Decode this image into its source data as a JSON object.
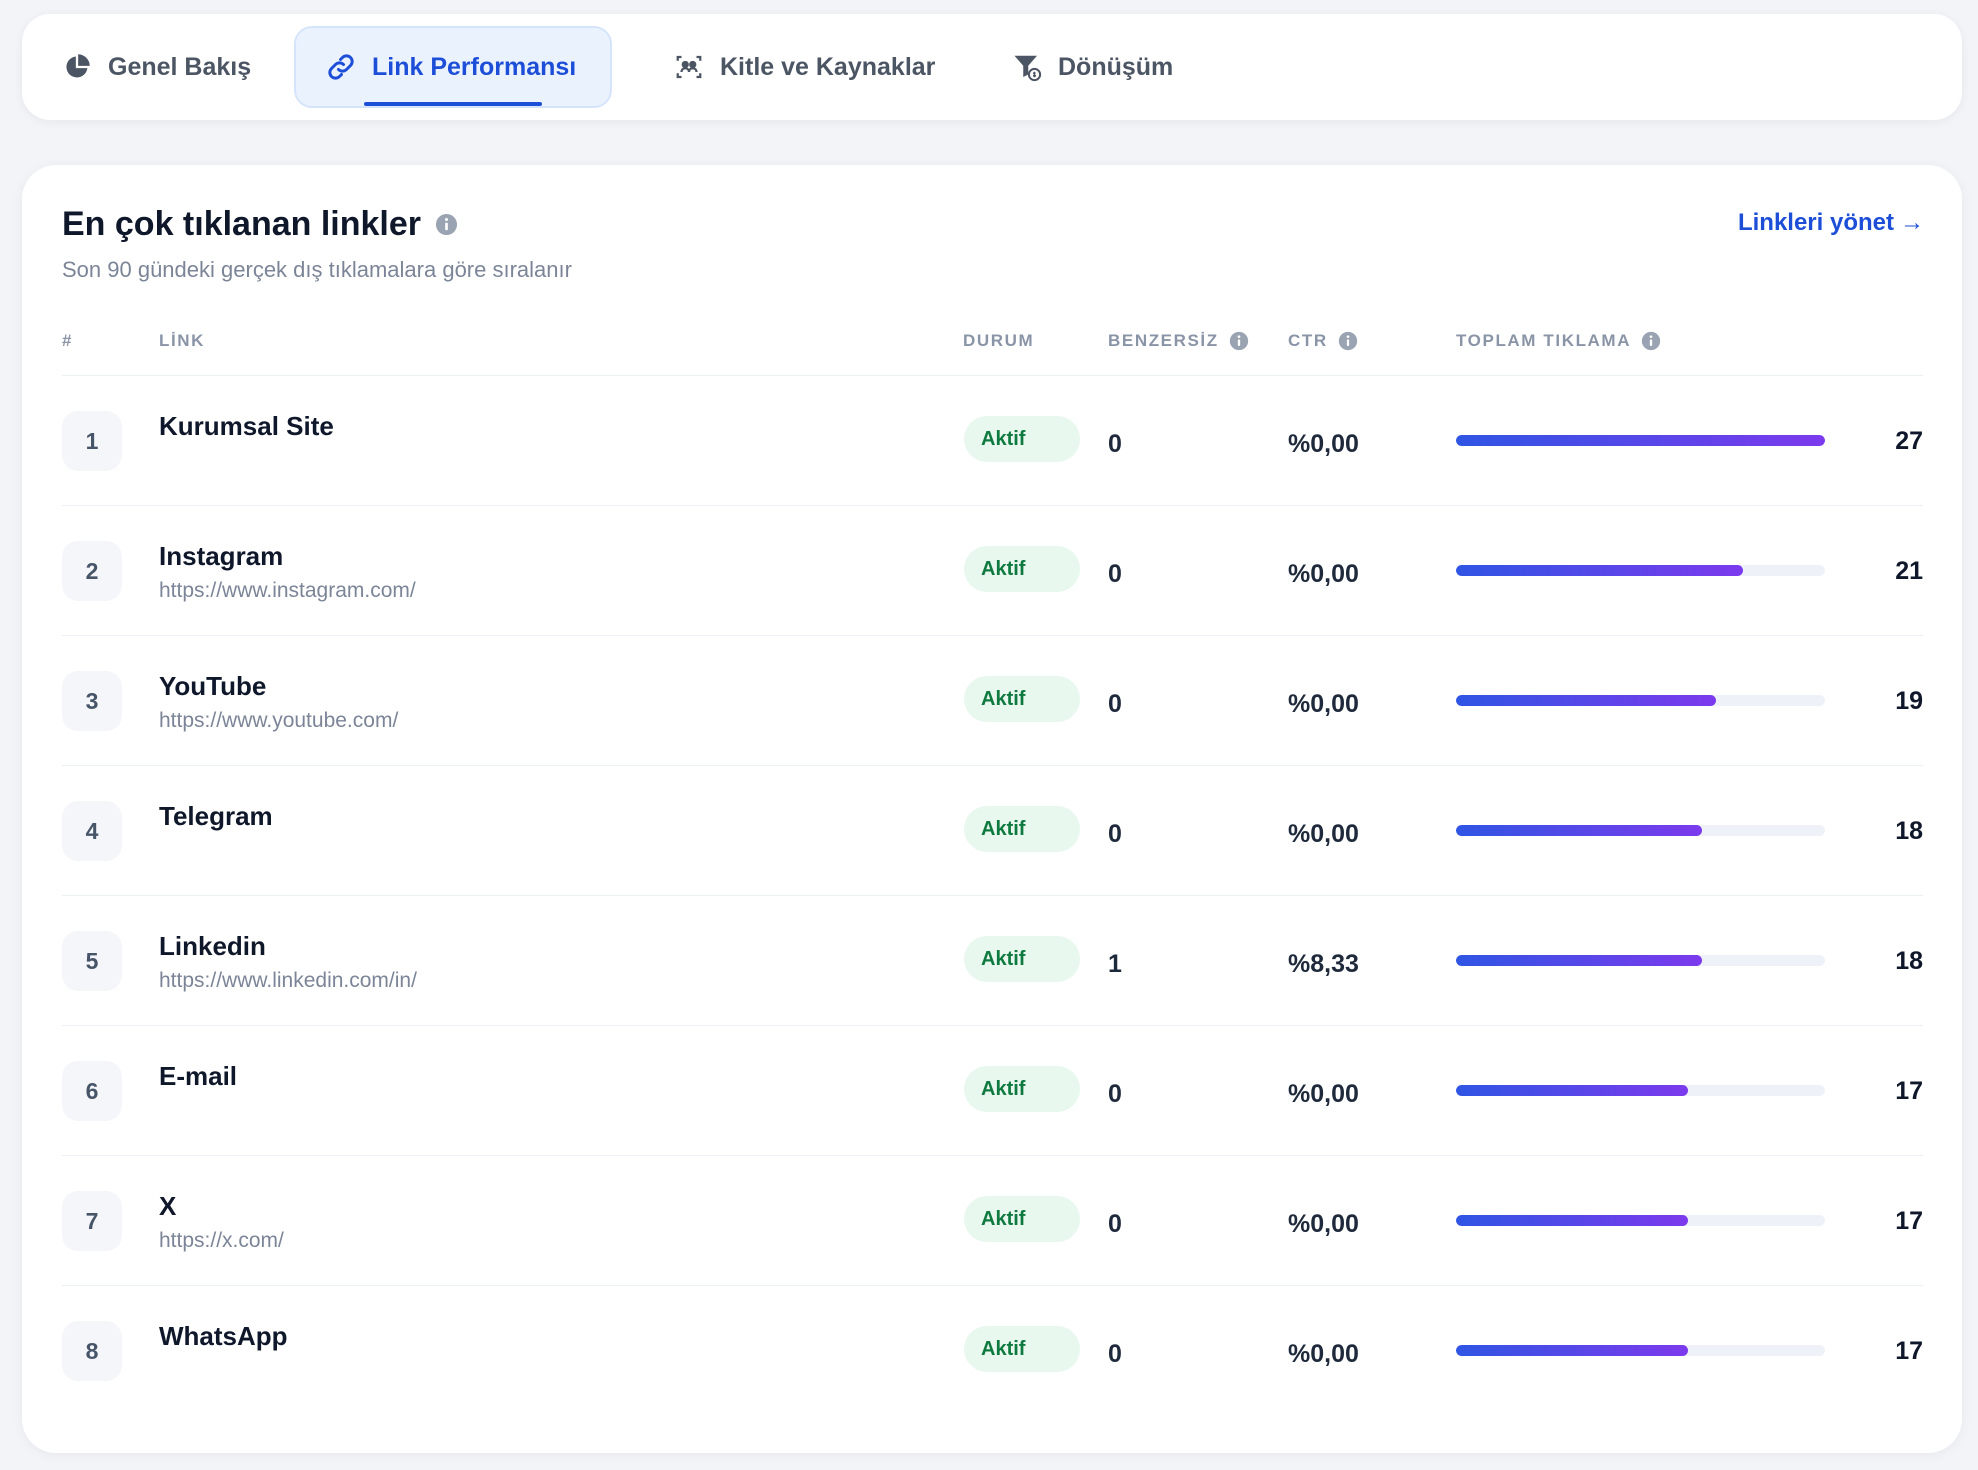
{
  "tabs": [
    {
      "label": "Genel Bakış",
      "icon": "pie-chart-icon",
      "active": false
    },
    {
      "label": "Link Performansı",
      "icon": "link-icon",
      "active": true
    },
    {
      "label": "Kitle ve Kaynaklar",
      "icon": "audience-icon",
      "active": false
    },
    {
      "label": "Dönüşüm",
      "icon": "funnel-icon",
      "active": false
    }
  ],
  "section": {
    "title": "En çok tıklanan linkler",
    "subtitle": "Son 90 gündeki gerçek dış tıklamalara göre sıralanır",
    "manage_link": "Linkleri yönet",
    "manage_arrow": "→"
  },
  "columns": {
    "rank": "#",
    "link": "LİNK",
    "status": "DURUM",
    "unique": "BENZERSİZ",
    "ctr": "CTR",
    "total": "TOPLAM TIKLAMA"
  },
  "colors": {
    "accent": "#1d4ed8",
    "bar_start": "#2f55e4",
    "bar_end": "#7c3aed",
    "badge_bg": "#e9f8ef",
    "badge_text": "#0f7a3f"
  },
  "rows": [
    {
      "rank": "1",
      "name": "Kurumsal Site",
      "url": "",
      "status": "Aktif",
      "unique": "0",
      "ctr": "%0,00",
      "total": "27",
      "share": 1.0
    },
    {
      "rank": "2",
      "name": "Instagram",
      "url": "https://www.instagram.com/",
      "status": "Aktif",
      "unique": "0",
      "ctr": "%0,00",
      "total": "21",
      "share": 0.778
    },
    {
      "rank": "3",
      "name": "YouTube",
      "url": "https://www.youtube.com/",
      "status": "Aktif",
      "unique": "0",
      "ctr": "%0,00",
      "total": "19",
      "share": 0.704
    },
    {
      "rank": "4",
      "name": "Telegram",
      "url": "",
      "status": "Aktif",
      "unique": "0",
      "ctr": "%0,00",
      "total": "18",
      "share": 0.667
    },
    {
      "rank": "5",
      "name": "Linkedin",
      "url": "https://www.linkedin.com/in/",
      "status": "Aktif",
      "unique": "1",
      "ctr": "%8,33",
      "total": "18",
      "share": 0.667
    },
    {
      "rank": "6",
      "name": "E-mail",
      "url": "",
      "status": "Aktif",
      "unique": "0",
      "ctr": "%0,00",
      "total": "17",
      "share": 0.63
    },
    {
      "rank": "7",
      "name": "X",
      "url": "https://x.com/",
      "status": "Aktif",
      "unique": "0",
      "ctr": "%0,00",
      "total": "17",
      "share": 0.63
    },
    {
      "rank": "8",
      "name": "WhatsApp",
      "url": "",
      "status": "Aktif",
      "unique": "0",
      "ctr": "%0,00",
      "total": "17",
      "share": 0.63
    }
  ]
}
